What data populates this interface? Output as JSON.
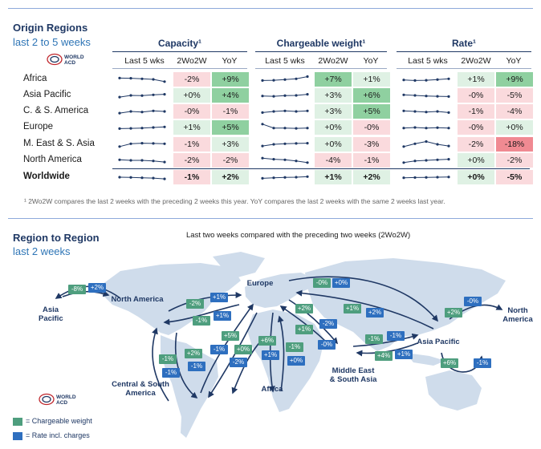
{
  "origin": {
    "title": "Origin Regions",
    "subtitle": "last 2 to 5 weeks",
    "groups": [
      {
        "key": "capacity",
        "label": "Capacity¹"
      },
      {
        "key": "chargeable_weight",
        "label": "Chargeable weight¹"
      },
      {
        "key": "rate",
        "label": "Rate¹"
      }
    ],
    "col_heads": {
      "last5": "Last 5 wks",
      "w2w": "2Wo2W",
      "yoy": "YoY"
    },
    "logo": {
      "line1": "WORLD",
      "line2": "ACD"
    },
    "rows": [
      {
        "region": "Africa",
        "capacity": {
          "w2w": "-2%",
          "yoy": "+9%",
          "spark": [
            0.62,
            0.6,
            0.55,
            0.5,
            0.3
          ]
        },
        "chargeable_weight": {
          "w2w": "+7%",
          "yoy": "+1%",
          "spark": [
            0.4,
            0.42,
            0.48,
            0.55,
            0.75
          ]
        },
        "rate": {
          "w2w": "+1%",
          "yoy": "+9%",
          "spark": [
            0.45,
            0.4,
            0.42,
            0.48,
            0.55
          ]
        }
      },
      {
        "region": "Asia Pacific",
        "capacity": {
          "w2w": "+0%",
          "yoy": "+4%",
          "spark": [
            0.35,
            0.5,
            0.48,
            0.55,
            0.6
          ]
        },
        "chargeable_weight": {
          "w2w": "+3%",
          "yoy": "+6%",
          "spark": [
            0.45,
            0.42,
            0.48,
            0.5,
            0.6
          ]
        },
        "rate": {
          "w2w": "-0%",
          "yoy": "-5%",
          "spark": [
            0.55,
            0.5,
            0.45,
            0.42,
            0.4
          ]
        }
      },
      {
        "region": "C. & S. America",
        "capacity": {
          "w2w": "-0%",
          "yoy": "-1%",
          "spark": [
            0.35,
            0.5,
            0.45,
            0.55,
            0.5
          ]
        },
        "chargeable_weight": {
          "w2w": "+3%",
          "yoy": "+5%",
          "spark": [
            0.4,
            0.5,
            0.55,
            0.5,
            0.55
          ]
        },
        "rate": {
          "w2w": "-1%",
          "yoy": "-4%",
          "spark": [
            0.55,
            0.5,
            0.45,
            0.5,
            0.4
          ]
        }
      },
      {
        "region": "Europe",
        "capacity": {
          "w2w": "+1%",
          "yoy": "+5%",
          "spark": [
            0.4,
            0.42,
            0.45,
            0.5,
            0.55
          ]
        },
        "chargeable_weight": {
          "w2w": "+0%",
          "yoy": "-0%",
          "spark": [
            0.8,
            0.45,
            0.45,
            0.42,
            0.45
          ]
        },
        "rate": {
          "w2w": "-0%",
          "yoy": "+0%",
          "spark": [
            0.45,
            0.5,
            0.45,
            0.48,
            0.45
          ]
        }
      },
      {
        "region": "M. East & S. Asia",
        "capacity": {
          "w2w": "-1%",
          "yoy": "+3%",
          "spark": [
            0.3,
            0.55,
            0.6,
            0.58,
            0.55
          ]
        },
        "chargeable_weight": {
          "w2w": "+0%",
          "yoy": "-3%",
          "spark": [
            0.35,
            0.5,
            0.55,
            0.58,
            0.6
          ]
        },
        "rate": {
          "w2w": "-2%",
          "yoy": "-18%",
          "spark": [
            0.3,
            0.55,
            0.75,
            0.5,
            0.35
          ]
        }
      },
      {
        "region": "North America",
        "capacity": {
          "w2w": "-2%",
          "yoy": "-2%",
          "spark": [
            0.55,
            0.5,
            0.5,
            0.45,
            0.35
          ]
        },
        "chargeable_weight": {
          "w2w": "-4%",
          "yoy": "-1%",
          "spark": [
            0.7,
            0.6,
            0.55,
            0.45,
            0.3
          ]
        },
        "rate": {
          "w2w": "+0%",
          "yoy": "-2%",
          "spark": [
            0.3,
            0.45,
            0.5,
            0.55,
            0.6
          ]
        }
      },
      {
        "region": "Worldwide",
        "worldwide": true,
        "capacity": {
          "w2w": "-1%",
          "yoy": "+2%",
          "spark": [
            0.5,
            0.48,
            0.45,
            0.42,
            0.35
          ]
        },
        "chargeable_weight": {
          "w2w": "+1%",
          "yoy": "+2%",
          "spark": [
            0.4,
            0.45,
            0.48,
            0.5,
            0.55
          ]
        },
        "rate": {
          "w2w": "+0%",
          "yoy": "-5%",
          "spark": [
            0.45,
            0.47,
            0.48,
            0.5,
            0.52
          ]
        }
      }
    ],
    "footnote": "¹ 2Wo2W compares the last 2 weeks with the preceding 2 weeks this year. YoY compares the last 2 weeks with the same 2 weeks last year."
  },
  "region_to_region": {
    "title": "Region to Region",
    "subtitle": "last 2 weeks",
    "map_title": "Last two weeks compared with the preceding two weeks (2Wo2W)",
    "labels": {
      "asia_pacific_west": "Asia\nPacific",
      "north_america": "North America",
      "europe": "Europe",
      "north_america_east": "North\nAmerica",
      "asia_pacific": "Asia Pacific",
      "middle_east": "Middle East\n& South Asia",
      "central_south_america": "Central & South\nAmerica",
      "africa": "Africa"
    },
    "badges": [
      {
        "id": "b1",
        "kind": "g",
        "text": "-8%"
      },
      {
        "id": "b2",
        "kind": "b",
        "text": "+2%"
      },
      {
        "id": "b3",
        "kind": "g",
        "text": "-2%"
      },
      {
        "id": "b4",
        "kind": "b",
        "text": "+1%"
      },
      {
        "id": "b5",
        "kind": "g",
        "text": "-1%"
      },
      {
        "id": "b6",
        "kind": "b",
        "text": "+1%"
      },
      {
        "id": "b7",
        "kind": "g",
        "text": "-0%"
      },
      {
        "id": "b8",
        "kind": "b",
        "text": "+0%"
      },
      {
        "id": "b9",
        "kind": "g",
        "text": "+2%"
      },
      {
        "id": "b10",
        "kind": "g",
        "text": "+1%"
      },
      {
        "id": "b11",
        "kind": "b",
        "text": "+2%"
      },
      {
        "id": "b12",
        "kind": "b",
        "text": "-2%"
      },
      {
        "id": "b13",
        "kind": "b",
        "text": "-0%"
      },
      {
        "id": "b14",
        "kind": "g",
        "text": "-1%"
      },
      {
        "id": "b15",
        "kind": "b",
        "text": "-1%"
      },
      {
        "id": "b16",
        "kind": "g",
        "text": "+4%"
      },
      {
        "id": "b17",
        "kind": "b",
        "text": "+1%"
      },
      {
        "id": "b18",
        "kind": "b",
        "text": "-0%"
      },
      {
        "id": "b19",
        "kind": "g",
        "text": "+2%"
      },
      {
        "id": "b20",
        "kind": "g",
        "text": "+6%"
      },
      {
        "id": "b21",
        "kind": "b",
        "text": "-1%"
      },
      {
        "id": "b22",
        "kind": "g",
        "text": "+5%"
      },
      {
        "id": "b23",
        "kind": "b",
        "text": "-1%"
      },
      {
        "id": "b24",
        "kind": "g",
        "text": "+0%"
      },
      {
        "id": "b25",
        "kind": "g",
        "text": "-1%"
      },
      {
        "id": "b26",
        "kind": "g",
        "text": "+2%"
      },
      {
        "id": "b27",
        "kind": "b",
        "text": "-1%"
      },
      {
        "id": "b28",
        "kind": "b",
        "text": "-1%"
      },
      {
        "id": "b29",
        "kind": "b",
        "text": "-2%"
      },
      {
        "id": "b30",
        "kind": "g",
        "text": "+6%"
      },
      {
        "id": "b31",
        "kind": "b",
        "text": "+1%"
      },
      {
        "id": "b32",
        "kind": "g",
        "text": "-1%"
      },
      {
        "id": "b33",
        "kind": "b",
        "text": "+0%"
      },
      {
        "id": "b34",
        "kind": "g",
        "text": "+1%"
      }
    ],
    "legend": {
      "chargeable": "= Chargeable weight",
      "rate": "= Rate incl. charges"
    },
    "logo": {
      "line1": "WORLD",
      "line2": "ACD"
    }
  },
  "colors": {
    "navy": "#1f3864",
    "blue": "#2e75b6",
    "green_strong": "#8fd0a0",
    "green_light": "#dff1e4",
    "red_strong": "#f08a92",
    "red_light": "#fadadd",
    "map": "#cfdceb",
    "badge_green": "#4e9e7e",
    "badge_blue": "#2e6fbf"
  },
  "chart_data": {
    "type": "table",
    "title": "Origin Regions — last 2 to 5 weeks",
    "columns": [
      "Capacity 2Wo2W",
      "Capacity YoY",
      "Chargeable weight 2Wo2W",
      "Chargeable weight YoY",
      "Rate 2Wo2W",
      "Rate YoY"
    ],
    "rows": [
      "Africa",
      "Asia Pacific",
      "C. & S. America",
      "Europe",
      "M. East & S. Asia",
      "North America",
      "Worldwide"
    ],
    "values": [
      [
        -2,
        9,
        7,
        1,
        1,
        9
      ],
      [
        0,
        4,
        3,
        6,
        0,
        -5
      ],
      [
        0,
        -1,
        3,
        5,
        -1,
        -4
      ],
      [
        1,
        5,
        0,
        0,
        0,
        0
      ],
      [
        -1,
        3,
        0,
        -3,
        -2,
        -18
      ],
      [
        -2,
        -2,
        -4,
        -1,
        0,
        -2
      ],
      [
        -1,
        2,
        1,
        2,
        0,
        -5
      ]
    ]
  }
}
